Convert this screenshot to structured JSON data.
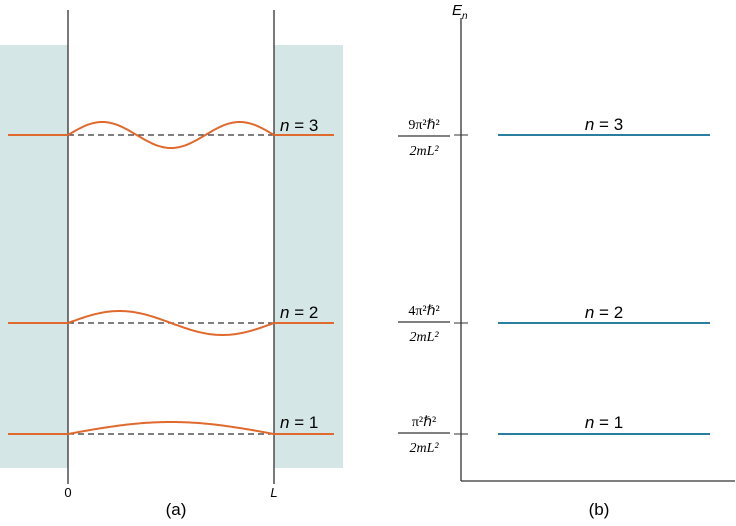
{
  "panel_a": {
    "caption": "(a)",
    "x_left_label": "0",
    "x_right_label": "L",
    "states": [
      {
        "n_label": "n",
        "eq": " = ",
        "n_value": "3",
        "half_waves": 3
      },
      {
        "n_label": "n",
        "eq": " = ",
        "n_value": "2",
        "half_waves": 2
      },
      {
        "n_label": "n",
        "eq": " = ",
        "n_value": "1",
        "half_waves": 1
      }
    ],
    "colors": {
      "well_fill": "#d4e6e6",
      "wave": "#e0692e",
      "axis": "#333333"
    }
  },
  "panel_b": {
    "caption": "(b)",
    "axis_label": "E",
    "axis_label_sub": "n",
    "levels": [
      {
        "n_label": "n",
        "eq": " = ",
        "n_value": "3",
        "num_coef": "9",
        "num_rest": "π²ℏ²",
        "den": "2mL²"
      },
      {
        "n_label": "n",
        "eq": " = ",
        "n_value": "2",
        "num_coef": "4",
        "num_rest": "π²ℏ²",
        "den": "2mL²"
      },
      {
        "n_label": "n",
        "eq": " = ",
        "n_value": "1",
        "num_coef": "",
        "num_rest": "π²ℏ²",
        "den": "2mL²"
      }
    ],
    "colors": {
      "level": "#2a7f9e"
    }
  }
}
